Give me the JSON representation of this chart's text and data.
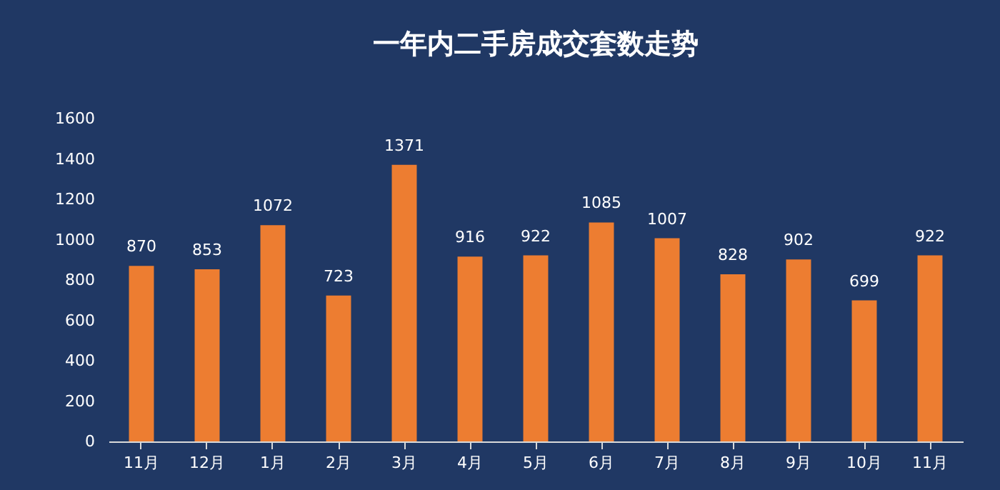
{
  "chart_data": {
    "type": "bar",
    "title": "一年内二手房成交套数走势",
    "categories": [
      "11月",
      "12月",
      "1月",
      "2月",
      "3月",
      "4月",
      "5月",
      "6月",
      "7月",
      "8月",
      "9月",
      "10月",
      "11月"
    ],
    "values": [
      870,
      853,
      1072,
      723,
      1371,
      916,
      922,
      1085,
      1007,
      828,
      902,
      699,
      922
    ],
    "color": "#ed7d31",
    "ylim": [
      0,
      1600
    ],
    "yticks": [
      0,
      200,
      400,
      600,
      800,
      1000,
      1200,
      1400,
      1600
    ],
    "grid": false,
    "data_labels": true
  }
}
